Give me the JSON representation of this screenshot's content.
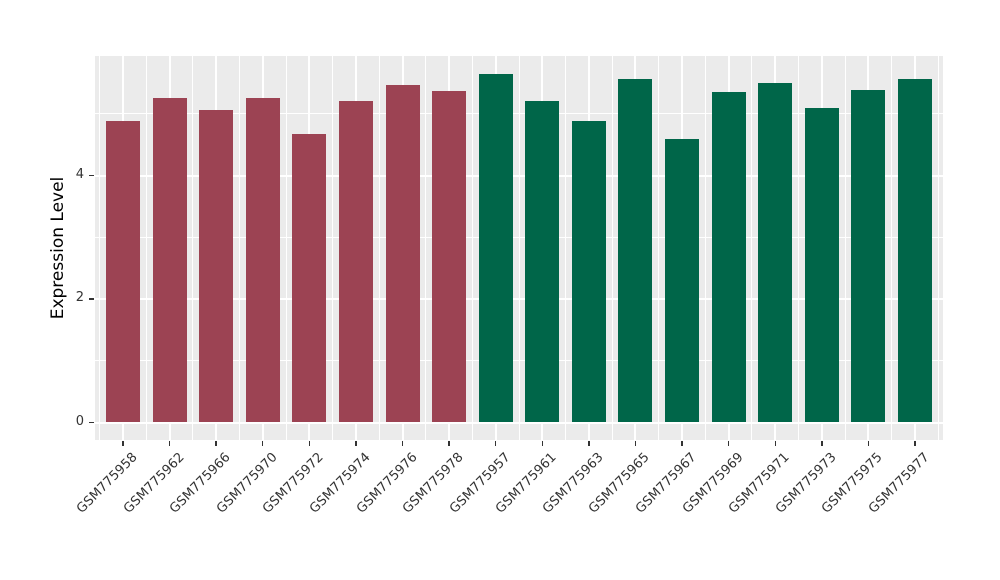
{
  "chart_data": {
    "type": "bar",
    "title": "",
    "xlabel": "",
    "ylabel": "Expression Level",
    "categories": [
      "GSM775958",
      "GSM775962",
      "GSM775966",
      "GSM775970",
      "GSM775972",
      "GSM775974",
      "GSM775976",
      "GSM775978",
      "GSM775957",
      "GSM775961",
      "GSM775963",
      "GSM775965",
      "GSM775967",
      "GSM775969",
      "GSM775971",
      "GSM775973",
      "GSM775975",
      "GSM775977"
    ],
    "values": [
      4.88,
      5.26,
      5.06,
      5.26,
      4.67,
      5.21,
      5.46,
      5.37,
      5.64,
      5.21,
      4.88,
      5.56,
      4.59,
      5.36,
      5.49,
      5.1,
      5.39,
      5.57
    ],
    "groups": [
      {
        "name": "maroon-group",
        "color": "#9C4353",
        "start_index": 0,
        "count": 8
      },
      {
        "name": "green-group",
        "color": "#006649",
        "start_index": 8,
        "count": 10
      }
    ],
    "yticks": [
      0,
      2,
      4
    ],
    "yminor": [
      1,
      3,
      5
    ],
    "ylim": [
      -0.28,
      5.93
    ],
    "legend": "none",
    "grid": "on",
    "panel_background": "#EBEBEB",
    "grid_color": "#FFFFFF",
    "axis_text_color": "#333333"
  }
}
